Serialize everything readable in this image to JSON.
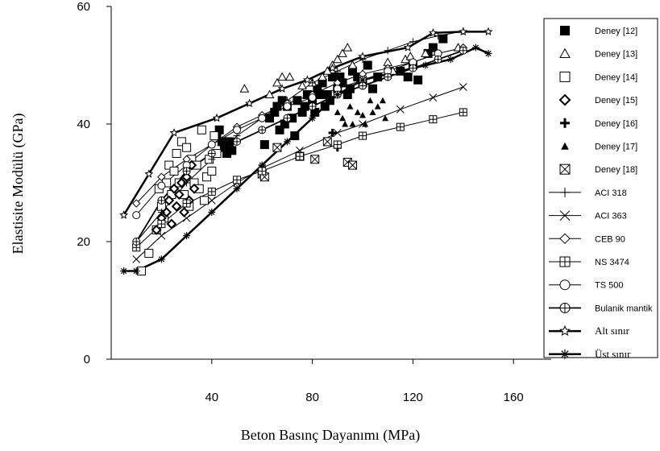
{
  "chart_data": {
    "type": "scatter",
    "xlabel": "Beton Basınç Dayanımı (MPa)",
    "ylabel": "Elastisite Modülü (GPa)",
    "xlim": [
      0,
      175
    ],
    "ylim": [
      0,
      60
    ],
    "xticks": [
      "40",
      "80",
      "120",
      "160"
    ],
    "yticks": [
      "0",
      "20",
      "40",
      "60"
    ],
    "legend_position": "right",
    "series": [
      {
        "name": "Deney [12]",
        "marker": "square-filled",
        "points": [
          [
            43,
            39
          ],
          [
            44,
            37
          ],
          [
            45,
            36
          ],
          [
            46,
            35
          ],
          [
            47,
            37
          ],
          [
            48,
            35.5
          ],
          [
            42,
            38
          ],
          [
            61,
            36.5
          ],
          [
            63,
            41
          ],
          [
            65,
            42
          ],
          [
            66,
            43
          ],
          [
            68,
            44
          ],
          [
            70,
            43
          ],
          [
            72,
            41
          ],
          [
            74,
            44
          ],
          [
            76,
            42
          ],
          [
            78,
            45
          ],
          [
            80,
            44
          ],
          [
            82,
            46
          ],
          [
            84,
            47
          ],
          [
            85,
            43
          ],
          [
            86,
            45
          ],
          [
            88,
            48
          ],
          [
            90,
            46
          ],
          [
            92,
            47
          ],
          [
            94,
            45
          ],
          [
            96,
            49
          ],
          [
            98,
            48
          ],
          [
            100,
            47
          ],
          [
            102,
            50
          ],
          [
            104,
            46
          ],
          [
            106,
            48
          ],
          [
            115,
            49
          ],
          [
            118,
            48
          ],
          [
            120,
            50
          ],
          [
            122,
            47.5
          ],
          [
            126,
            52
          ],
          [
            128,
            53
          ],
          [
            132,
            54.5
          ],
          [
            67,
            39
          ],
          [
            69,
            40
          ],
          [
            73,
            38
          ],
          [
            77,
            43
          ],
          [
            81,
            42
          ],
          [
            83,
            45
          ],
          [
            87,
            44
          ],
          [
            91,
            48
          ],
          [
            95,
            46
          ]
        ]
      },
      {
        "name": "Deney [13]",
        "marker": "triangle-open",
        "points": [
          [
            53,
            46
          ],
          [
            63,
            45
          ],
          [
            66,
            47
          ],
          [
            68,
            48
          ],
          [
            71,
            48
          ],
          [
            76,
            46.5
          ],
          [
            80,
            47
          ],
          [
            84,
            48
          ],
          [
            86,
            49
          ],
          [
            88,
            50
          ],
          [
            90,
            51
          ],
          [
            92,
            52
          ],
          [
            94,
            53
          ],
          [
            96,
            50
          ],
          [
            100,
            48.5
          ],
          [
            110,
            50.5
          ],
          [
            112,
            49
          ],
          [
            117,
            51
          ],
          [
            119,
            51.5
          ],
          [
            125,
            52
          ],
          [
            138,
            53
          ]
        ]
      },
      {
        "name": "Deney [14]",
        "marker": "square-open",
        "points": [
          [
            12,
            15
          ],
          [
            15,
            18
          ],
          [
            18,
            22
          ],
          [
            19,
            29
          ],
          [
            20,
            26
          ],
          [
            21,
            24
          ],
          [
            22,
            30
          ],
          [
            23,
            33
          ],
          [
            24,
            28
          ],
          [
            25,
            32
          ],
          [
            26,
            35
          ],
          [
            27,
            30
          ],
          [
            28,
            37
          ],
          [
            29,
            28
          ],
          [
            30,
            36
          ],
          [
            31,
            26
          ],
          [
            32,
            34
          ],
          [
            33,
            30
          ],
          [
            34,
            33
          ],
          [
            35,
            29
          ],
          [
            36,
            39
          ],
          [
            37,
            27
          ],
          [
            38,
            31
          ],
          [
            39,
            34
          ],
          [
            40,
            32
          ],
          [
            41,
            38
          ],
          [
            42,
            35
          ]
        ]
      },
      {
        "name": "Deney [15]",
        "marker": "diamond-open",
        "points": [
          [
            18,
            22
          ],
          [
            20,
            24
          ],
          [
            22,
            25
          ],
          [
            23,
            27
          ],
          [
            24,
            23
          ],
          [
            25,
            29
          ],
          [
            26,
            26
          ],
          [
            27,
            28
          ],
          [
            28,
            30
          ],
          [
            29,
            25
          ],
          [
            30,
            31
          ],
          [
            31,
            27
          ],
          [
            32,
            33
          ],
          [
            33,
            29
          ]
        ]
      },
      {
        "name": "Deney [16]",
        "marker": "plus",
        "points": [
          [
            88,
            38.5
          ],
          [
            90,
            36
          ]
        ]
      },
      {
        "name": "Deney [17]",
        "marker": "triangle-filled",
        "points": [
          [
            90,
            42
          ],
          [
            92,
            41
          ],
          [
            93,
            40
          ],
          [
            95,
            43
          ],
          [
            96,
            40
          ],
          [
            98,
            42
          ],
          [
            100,
            41.5
          ],
          [
            101,
            40
          ],
          [
            103,
            44
          ],
          [
            104,
            42
          ],
          [
            106,
            43
          ],
          [
            108,
            44
          ],
          [
            109,
            41
          ]
        ]
      },
      {
        "name": "Deney [18]",
        "marker": "square-x",
        "points": [
          [
            60,
            31.5
          ],
          [
            61,
            31
          ],
          [
            66,
            36
          ],
          [
            75,
            34.5
          ],
          [
            81,
            34
          ],
          [
            86,
            37
          ],
          [
            94,
            33.5
          ],
          [
            96,
            33
          ]
        ]
      },
      {
        "name": "ACI 318",
        "marker": "plus-line",
        "points": [
          [
            10,
            20
          ],
          [
            20,
            25
          ],
          [
            30,
            30
          ],
          [
            40,
            34
          ],
          [
            50,
            38
          ],
          [
            60,
            41
          ],
          [
            70,
            44
          ],
          [
            80,
            47
          ],
          [
            90,
            49
          ],
          [
            100,
            51
          ],
          [
            110,
            52.5
          ],
          [
            120,
            54
          ],
          [
            130,
            55
          ],
          [
            140,
            55.8
          ]
        ]
      },
      {
        "name": "ACI 363",
        "marker": "x-line",
        "points": [
          [
            10,
            17
          ],
          [
            20,
            21
          ],
          [
            30,
            24
          ],
          [
            40,
            27
          ],
          [
            50,
            30
          ],
          [
            60,
            32.5
          ],
          [
            75,
            35.5
          ],
          [
            90,
            38.5
          ],
          [
            100,
            40
          ],
          [
            115,
            42.5
          ],
          [
            128,
            44.5
          ],
          [
            140,
            46.3
          ]
        ]
      },
      {
        "name": "CEB 90",
        "marker": "diamond-line",
        "points": [
          [
            10,
            26.5
          ],
          [
            20,
            31
          ],
          [
            30,
            34
          ],
          [
            40,
            36.5
          ],
          [
            50,
            39.5
          ],
          [
            60,
            41.5
          ],
          [
            70,
            43.5
          ],
          [
            80,
            45
          ],
          [
            90,
            47
          ],
          [
            100,
            48.5
          ],
          [
            110,
            49.5
          ],
          [
            120,
            50.5
          ],
          [
            130,
            52
          ],
          [
            140,
            53
          ]
        ]
      },
      {
        "name": "NS 3474",
        "marker": "boxplus-line",
        "points": [
          [
            10,
            19
          ],
          [
            20,
            23
          ],
          [
            30,
            26.5
          ],
          [
            40,
            28.5
          ],
          [
            50,
            30.5
          ],
          [
            60,
            32
          ],
          [
            75,
            34.5
          ],
          [
            90,
            36.5
          ],
          [
            100,
            38
          ],
          [
            115,
            39.5
          ],
          [
            128,
            40.8
          ],
          [
            140,
            42
          ]
        ]
      },
      {
        "name": "TS 500",
        "marker": "circle-line",
        "points": [
          [
            10,
            24.5
          ],
          [
            20,
            29.5
          ],
          [
            30,
            33
          ],
          [
            40,
            36.5
          ],
          [
            50,
            39
          ],
          [
            60,
            41
          ],
          [
            70,
            43
          ],
          [
            80,
            44.5
          ],
          [
            90,
            46
          ],
          [
            100,
            47.5
          ],
          [
            110,
            49
          ],
          [
            120,
            50.5
          ],
          [
            130,
            52
          ]
        ]
      },
      {
        "name": "Bulanik mantik",
        "marker": "circleplus-line",
        "points": [
          [
            10,
            20
          ],
          [
            20,
            27
          ],
          [
            30,
            32
          ],
          [
            40,
            35
          ],
          [
            50,
            37
          ],
          [
            60,
            39
          ],
          [
            70,
            41
          ],
          [
            80,
            43
          ],
          [
            90,
            45
          ],
          [
            100,
            46.5
          ],
          [
            110,
            48
          ],
          [
            120,
            49.5
          ],
          [
            130,
            51
          ],
          [
            140,
            52.5
          ]
        ]
      },
      {
        "name": "Alt sınır",
        "marker": "star-line",
        "points": [
          [
            5,
            24.5
          ],
          [
            15,
            31.5
          ],
          [
            25,
            38.5
          ],
          [
            42,
            41
          ],
          [
            55,
            43.5
          ],
          [
            68,
            46
          ],
          [
            78,
            47.5
          ],
          [
            88,
            49.5
          ],
          [
            100,
            51.5
          ],
          [
            118,
            53
          ],
          [
            128,
            55.5
          ],
          [
            140,
            55.7
          ],
          [
            150,
            55.7
          ]
        ]
      },
      {
        "name": "Üst sınır",
        "marker": "asterisk-line",
        "points": [
          [
            5,
            15
          ],
          [
            10,
            15
          ],
          [
            20,
            17
          ],
          [
            30,
            21
          ],
          [
            40,
            25
          ],
          [
            50,
            29
          ],
          [
            60,
            33
          ],
          [
            70,
            37
          ],
          [
            80,
            41
          ],
          [
            90,
            45
          ],
          [
            100,
            47.5
          ],
          [
            115,
            49
          ],
          [
            125,
            50
          ],
          [
            135,
            51
          ],
          [
            145,
            53
          ],
          [
            150,
            52
          ]
        ]
      }
    ]
  }
}
